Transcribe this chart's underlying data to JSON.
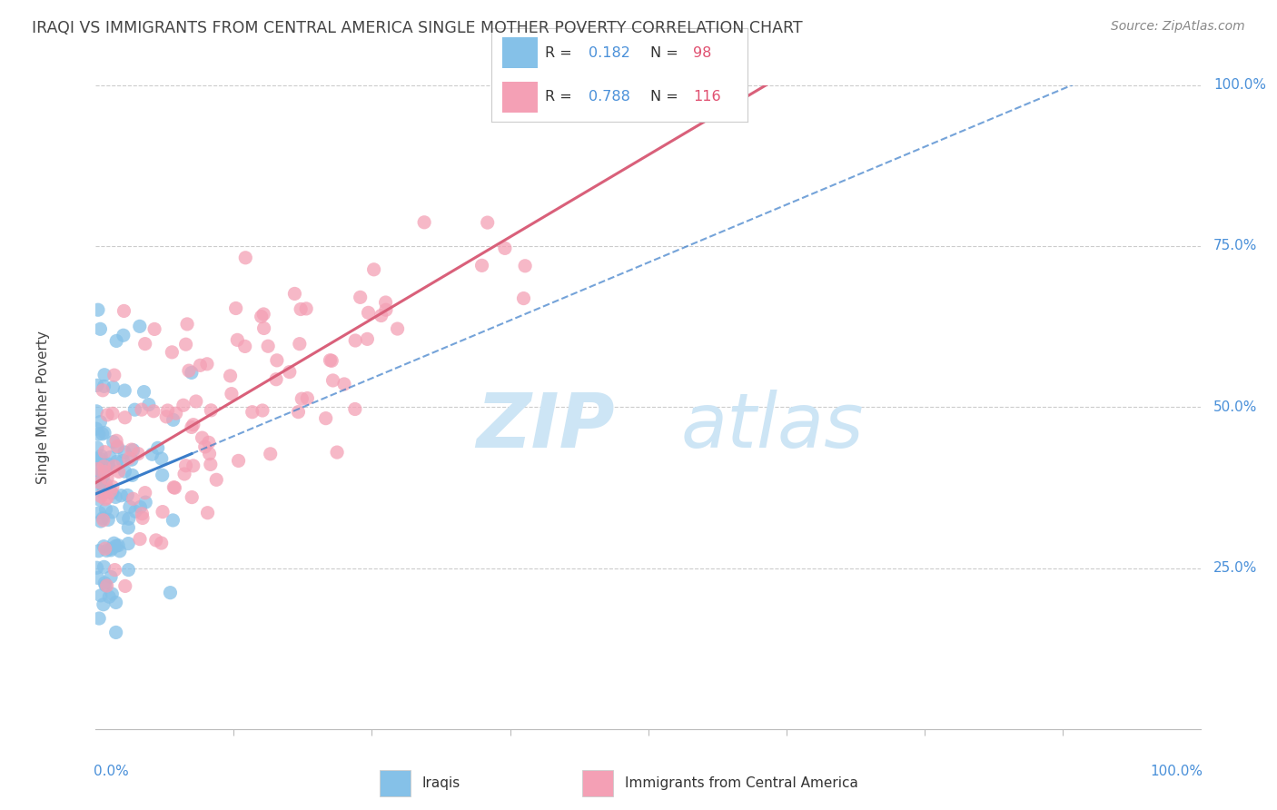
{
  "title": "IRAQI VS IMMIGRANTS FROM CENTRAL AMERICA SINGLE MOTHER POVERTY CORRELATION CHART",
  "source": "Source: ZipAtlas.com",
  "ylabel": "Single Mother Poverty",
  "ytick_values": [
    25,
    50,
    75,
    100
  ],
  "ytick_labels": [
    "25.0%",
    "50.0%",
    "75.0%",
    "100.0%"
  ],
  "xtick_left": "0.0%",
  "xtick_right": "100.0%",
  "iraqi_color": "#85c1e8",
  "iraqi_line_color": "#3a7dc9",
  "ca_color": "#f4a0b5",
  "ca_line_color": "#d9607a",
  "grid_color": "#cccccc",
  "R_iraqi": 0.182,
  "N_iraqi": 98,
  "R_ca": 0.788,
  "N_ca": 116,
  "watermark_color": "#cde5f5",
  "label_color": "#4a90d9",
  "text_color": "#444444",
  "legend_border_color": "#cccccc",
  "source_color": "#888888"
}
